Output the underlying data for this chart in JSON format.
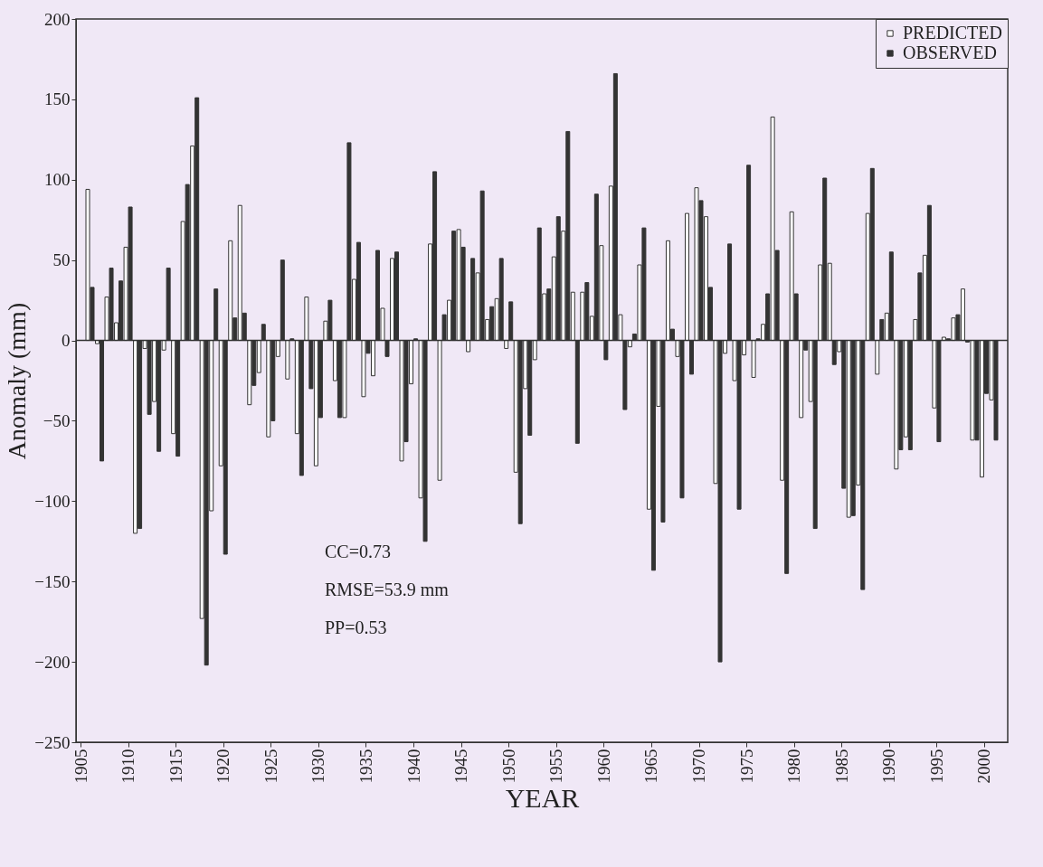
{
  "chart_data": {
    "type": "bar",
    "xlabel": "YEAR",
    "ylabel": "Anomaly (mm)",
    "x": [
      1906,
      1907,
      1908,
      1909,
      1910,
      1911,
      1912,
      1913,
      1914,
      1915,
      1916,
      1917,
      1918,
      1919,
      1920,
      1921,
      1922,
      1923,
      1924,
      1925,
      1926,
      1927,
      1928,
      1929,
      1930,
      1931,
      1932,
      1933,
      1934,
      1935,
      1936,
      1937,
      1938,
      1939,
      1940,
      1941,
      1942,
      1943,
      1944,
      1945,
      1946,
      1947,
      1948,
      1949,
      1950,
      1951,
      1952,
      1953,
      1954,
      1955,
      1956,
      1957,
      1958,
      1959,
      1960,
      1961,
      1962,
      1963,
      1964,
      1965,
      1966,
      1967,
      1968,
      1969,
      1970,
      1971,
      1972,
      1973,
      1974,
      1975,
      1976,
      1977,
      1978,
      1979,
      1980,
      1981,
      1982,
      1983,
      1984,
      1985,
      1986,
      1987,
      1988,
      1989,
      1990,
      1991,
      1992,
      1993,
      1994,
      1995,
      1996,
      1997,
      1998,
      1999,
      2000,
      2001
    ],
    "series": [
      {
        "name": "PREDICTED",
        "color": "#ffffff",
        "values": [
          94,
          -2,
          27,
          11,
          58,
          -120,
          -5,
          -38,
          -6,
          -58,
          74,
          121,
          -173,
          -106,
          -78,
          62,
          84,
          -40,
          -20,
          -60,
          -10,
          -24,
          -58,
          27,
          -78,
          12,
          -25,
          -48,
          38,
          -35,
          -22,
          20,
          51,
          -75,
          -27,
          -98,
          60,
          -87,
          25,
          69,
          -7,
          42,
          13,
          26,
          -5,
          -82,
          -30,
          -12,
          29,
          52,
          68,
          30,
          30,
          15,
          59,
          96,
          16,
          -4,
          47,
          -105,
          -41,
          62,
          -10,
          79,
          95,
          77,
          -89,
          -8,
          -25,
          -9,
          -23,
          10,
          139,
          -87,
          80,
          -48,
          -38,
          47,
          48,
          -7,
          -110,
          -90,
          79,
          -21,
          17,
          -80,
          -60,
          13,
          53,
          -42,
          2,
          14,
          32,
          -62,
          -85,
          -37
        ]
      },
      {
        "name": "OBSERVED",
        "color": "#333333",
        "values": [
          33,
          -75,
          45,
          37,
          83,
          -117,
          -46,
          -69,
          45,
          -72,
          97,
          151,
          -202,
          32,
          -133,
          14,
          17,
          -28,
          10,
          -50,
          50,
          1,
          -84,
          -30,
          -48,
          25,
          -48,
          123,
          61,
          -8,
          56,
          -10,
          55,
          -63,
          1,
          -125,
          105,
          16,
          68,
          58,
          51,
          93,
          21,
          51,
          24,
          -114,
          -59,
          70,
          32,
          77,
          130,
          -64,
          36,
          91,
          -12,
          166,
          -43,
          4,
          70,
          -143,
          -113,
          7,
          -98,
          -21,
          87,
          33,
          -200,
          60,
          -105,
          109,
          1,
          29,
          56,
          -145,
          29,
          -6,
          -117,
          101,
          -15,
          -92,
          -109,
          -155,
          107,
          13,
          55,
          -68,
          -68,
          42,
          84,
          -63,
          1,
          16,
          -1,
          -62,
          -33,
          -62
        ]
      }
    ],
    "xlim": [
      1905,
      2002
    ],
    "xticks": [
      1905,
      1910,
      1915,
      1920,
      1925,
      1930,
      1935,
      1940,
      1945,
      1950,
      1955,
      1960,
      1965,
      1970,
      1975,
      1980,
      1985,
      1990,
      1995,
      2000
    ],
    "ylim": [
      -250,
      200
    ],
    "yticks": [
      -250,
      -200,
      -150,
      -100,
      -50,
      0,
      50,
      100,
      150,
      200
    ],
    "grid": false,
    "legend": "top right",
    "ref_lines": [
      {
        "axis": "y",
        "value": 0
      }
    ],
    "annotations": [
      "CC=0.73",
      "RMSE=53.9 mm",
      "PP=0.53"
    ]
  }
}
